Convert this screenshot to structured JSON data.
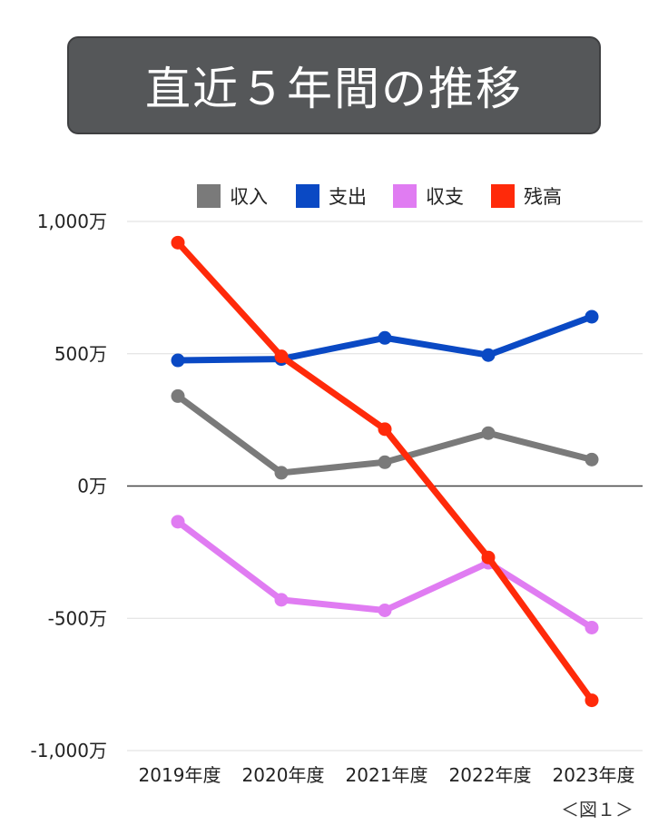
{
  "title": "直近５年間の推移",
  "caption": "＜図１＞",
  "colors": {
    "income": "#7a7a7a",
    "expense": "#0a49c4",
    "balance": "#e07cf2",
    "savings": "#ff2a0a",
    "title_bg": "#555759",
    "grid": "#dddddd",
    "axis": "#444444"
  },
  "chart_data": {
    "type": "line",
    "categories": [
      "2019年度",
      "2020年度",
      "2021年度",
      "2022年度",
      "2023年度"
    ],
    "series": [
      {
        "name": "収入",
        "color": "#7a7a7a",
        "values": [
          340,
          50,
          90,
          200,
          100
        ]
      },
      {
        "name": "支出",
        "color": "#0a49c4",
        "values": [
          475,
          480,
          560,
          495,
          640
        ]
      },
      {
        "name": "収支",
        "color": "#e07cf2",
        "values": [
          -135,
          -430,
          -470,
          -290,
          -535
        ]
      },
      {
        "name": "残高",
        "color": "#ff2a0a",
        "values": [
          920,
          490,
          215,
          -270,
          -810
        ]
      }
    ],
    "ylim": [
      -1000,
      1000
    ],
    "yticks": [
      1000,
      500,
      0,
      -500,
      -1000
    ],
    "ytick_labels": [
      "1,000万",
      "500万",
      "0万",
      "-500万",
      "-1,000万"
    ],
    "legend_position": "top",
    "grid": true
  }
}
